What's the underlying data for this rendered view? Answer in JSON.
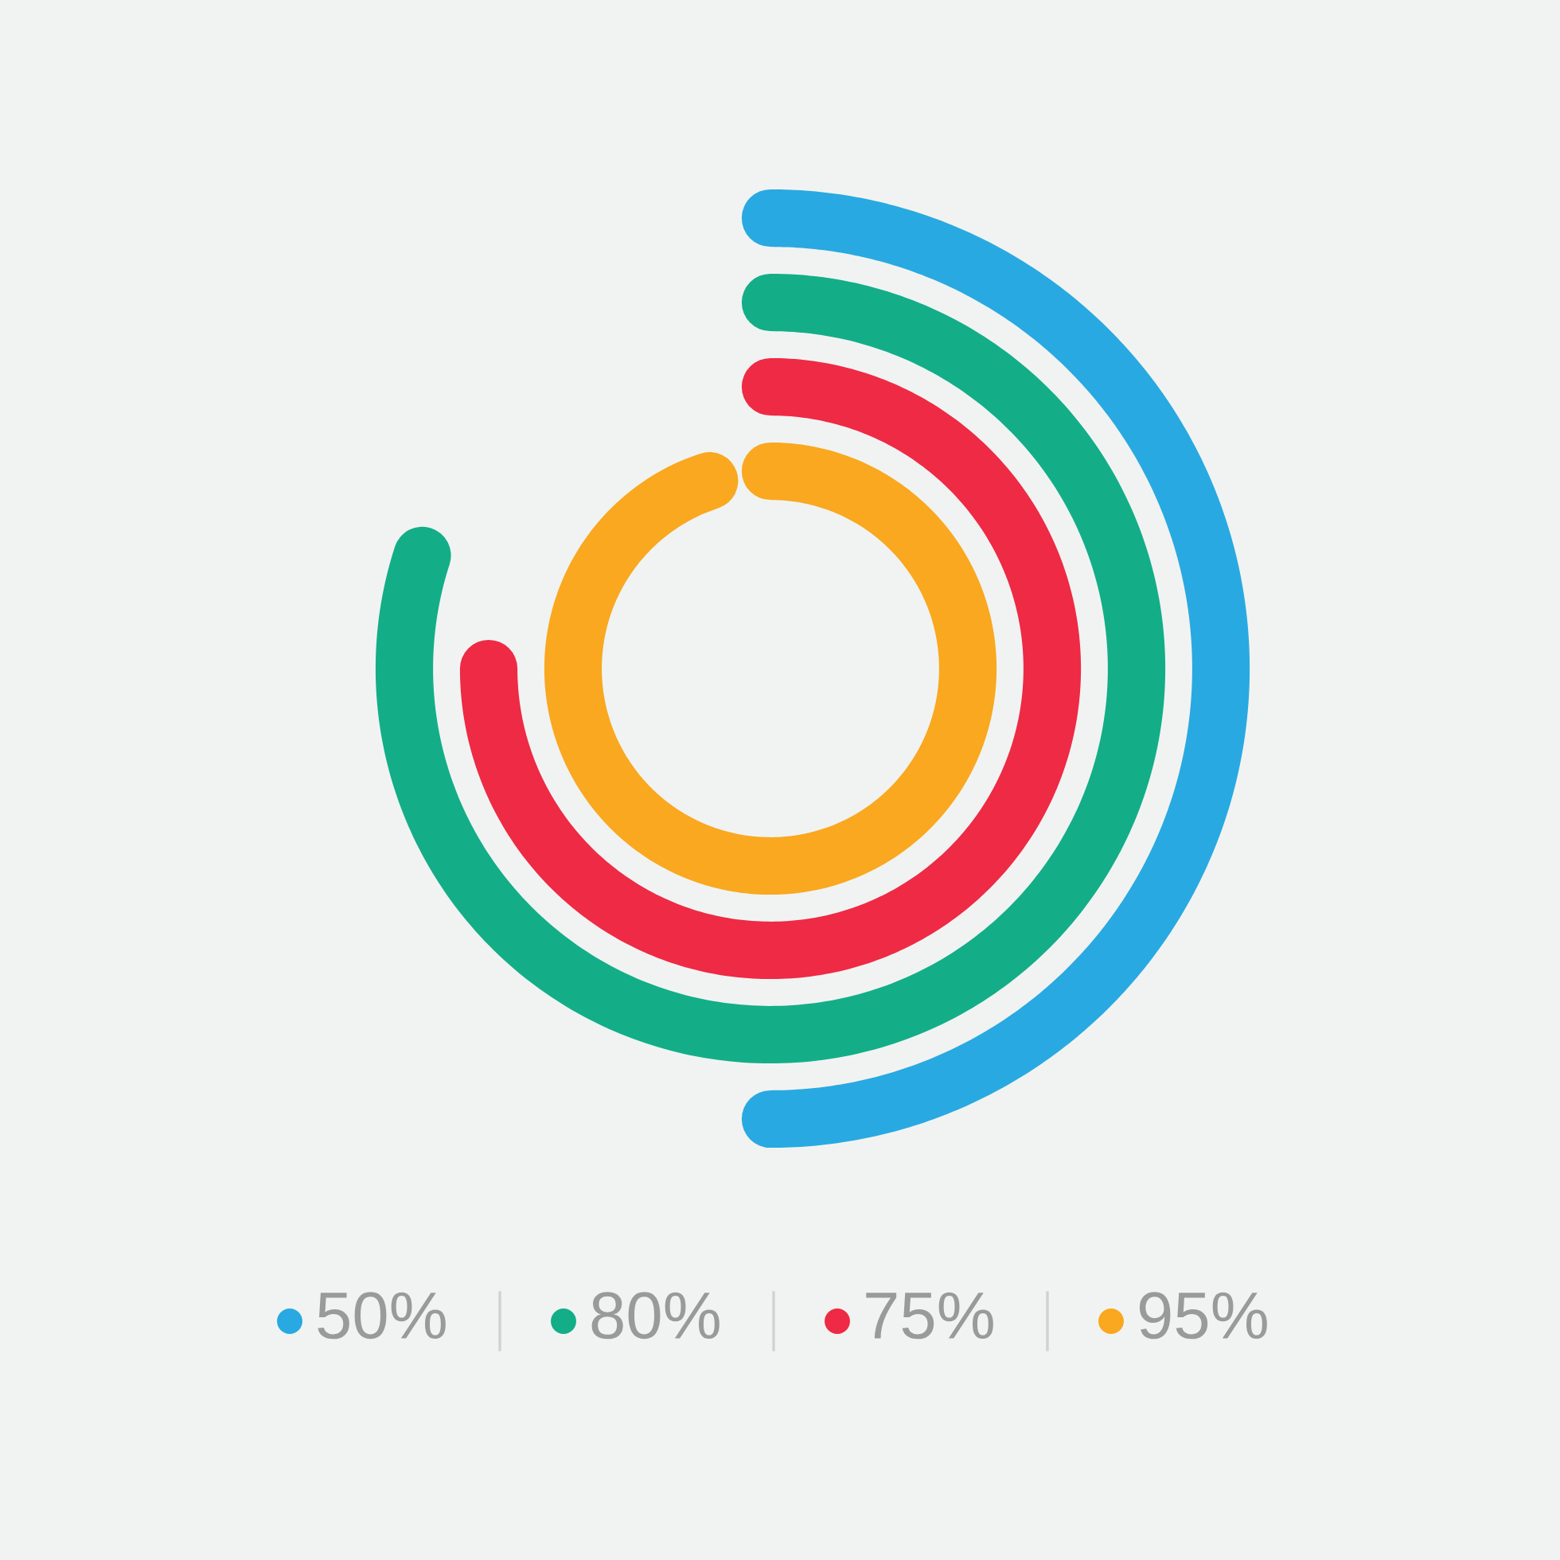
{
  "chart_data": {
    "type": "other",
    "categories": [
      null,
      null,
      null,
      null
    ],
    "values": [
      50,
      80,
      75,
      95
    ],
    "colors": [
      "#29a9e1",
      "#13ae87",
      "#ee2a45",
      "#f9a81f"
    ],
    "value_labels": [
      "50%",
      "80%",
      "75%",
      "95%"
    ]
  }
}
